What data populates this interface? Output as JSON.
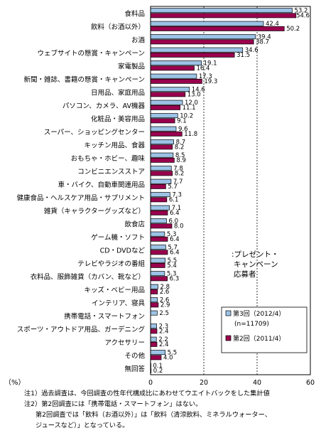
{
  "chart_data": {
    "type": "bar",
    "orientation": "horizontal",
    "categories": [
      "食料品",
      "飲料（お酒以外）",
      "お酒",
      "ウェブサイトの懸賞・キャンペーン",
      "家電製品",
      "新聞・雑誌、書籍の懸賞・キャンペーン",
      "日用品、家庭用品",
      "パソコン、カメラ、AV機器",
      "化粧品・美容用品",
      "スーパー、ショッピングセンター",
      "キッチン用品、食器",
      "おもちゃ・ホビー、趣味",
      "コンビニエンスストア",
      "車・バイク、自動車関連用品",
      "健康食品・ヘルスケア用品・サプリメント",
      "雑貨（キャラクターグッズなど）",
      "飲食店",
      "ゲーム機・ソフト",
      "CD・DVDなど",
      "テレビやラジオの番組",
      "衣料品、服飾雑貨（カバン、靴など）",
      "キッズ・ベビー用品",
      "インテリア、寝具",
      "携帯電話・スマートフォン",
      "スポーツ・アウトドア用品、ガーデニング",
      "アクセサリー",
      "その他",
      "無回答"
    ],
    "series": [
      {
        "name": "第3回（2012/4）",
        "sub": "(n=11709)",
        "color": "#9cc3e6",
        "values": [
          53.2,
          42.4,
          39.4,
          34.6,
          19.1,
          17.3,
          14.6,
          12.0,
          10.2,
          9.6,
          8.7,
          8.5,
          7.8,
          7.7,
          7.3,
          7.1,
          6.0,
          5.3,
          5.7,
          5.5,
          5.3,
          2.8,
          2.6,
          2.5,
          2.3,
          2.2,
          5.5,
          0.1
        ],
        "labels": [
          "53.2",
          "42.4",
          "39.4",
          "34.6",
          "19.1",
          "17.3",
          "14.6",
          "12.0",
          "10.2",
          "9.6",
          "8.7",
          "8.5",
          "7.8",
          "7.7",
          "7.3",
          "7.1",
          "6.0",
          "5.3",
          "5.7",
          "5.5",
          "5.3",
          "2.8",
          "2.6",
          "2.5",
          "2.3",
          "2.2",
          "5.5",
          "0.1"
        ]
      },
      {
        "name": "第2回（2011/4）",
        "color": "#99004d",
        "values": [
          54.6,
          50.2,
          38.7,
          31.5,
          16.4,
          19.3,
          13.0,
          11.1,
          9.1,
          11.8,
          8.2,
          8.9,
          8.2,
          5.7,
          6.1,
          6.4,
          8.0,
          6.4,
          6.4,
          5.4,
          6.3,
          2.6,
          2.9,
          null,
          2.4,
          2.4,
          4.0,
          0.2
        ],
        "labels": [
          "54.6",
          "50.2",
          "38.7",
          "31.5",
          "16.4",
          "19.3",
          "13.0",
          "11.1",
          "9.1",
          "11.8",
          "8.2",
          "8.9",
          "8.2",
          "5.7",
          "6.1",
          "6.4",
          "8.0",
          "6.4",
          "6.4",
          "5.4",
          "6.3",
          "2.6",
          "2.9",
          "",
          "2.4",
          "2.4",
          "4.0",
          "0.2"
        ]
      }
    ],
    "xlim": [
      0,
      60
    ],
    "xticks": [
      "0",
      "20",
      "40",
      "60"
    ],
    "xlabel": "（%）",
    "annotation": [
      ":プレゼント・",
      "キャンペーン",
      "応募者"
    ],
    "legend_position": "bottom-right inside plot"
  },
  "notes": [
    "注1）過去調査は、今回調査の性年代構成比にあわせてウエイトバックをした集計値",
    "注2）第2回調査には「携帯電話・スマートフォン」はない。",
    "第2回調査では「飲料（お酒以外）」は「飲料（清涼飲料、ミネラルウォーター、",
    "ジュースなど）」となっている。"
  ]
}
